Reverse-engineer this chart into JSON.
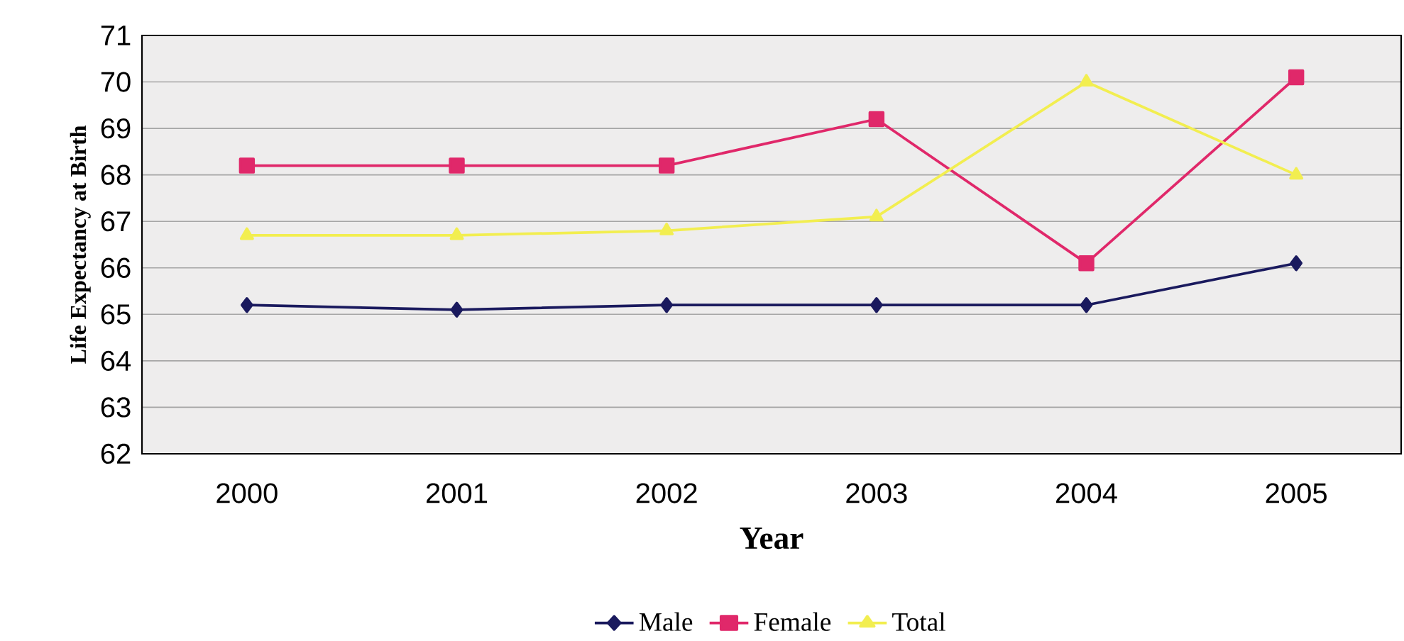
{
  "chart_data": {
    "type": "line",
    "xlabel": "Year",
    "ylabel": "Life Expectancy at Birth",
    "categories": [
      "2000",
      "2001",
      "2002",
      "2003",
      "2004",
      "2005"
    ],
    "series": [
      {
        "name": "Male",
        "color": "#1a1a5e",
        "marker": "diamond",
        "values": [
          65.2,
          65.1,
          65.2,
          65.2,
          65.2,
          66.1
        ]
      },
      {
        "name": "Female",
        "color": "#e0286a",
        "marker": "square",
        "values": [
          68.2,
          68.2,
          68.2,
          69.2,
          66.1,
          70.1
        ]
      },
      {
        "name": "Total",
        "color": "#f2ee50",
        "marker": "triangle",
        "values": [
          66.7,
          66.7,
          66.8,
          67.1,
          70.0,
          68.0
        ]
      }
    ],
    "ylim": [
      62,
      71
    ],
    "yticks": [
      62,
      63,
      64,
      65,
      66,
      67,
      68,
      69,
      70,
      71
    ],
    "grid": "y",
    "legend": "bottom",
    "line_style": "solid"
  }
}
